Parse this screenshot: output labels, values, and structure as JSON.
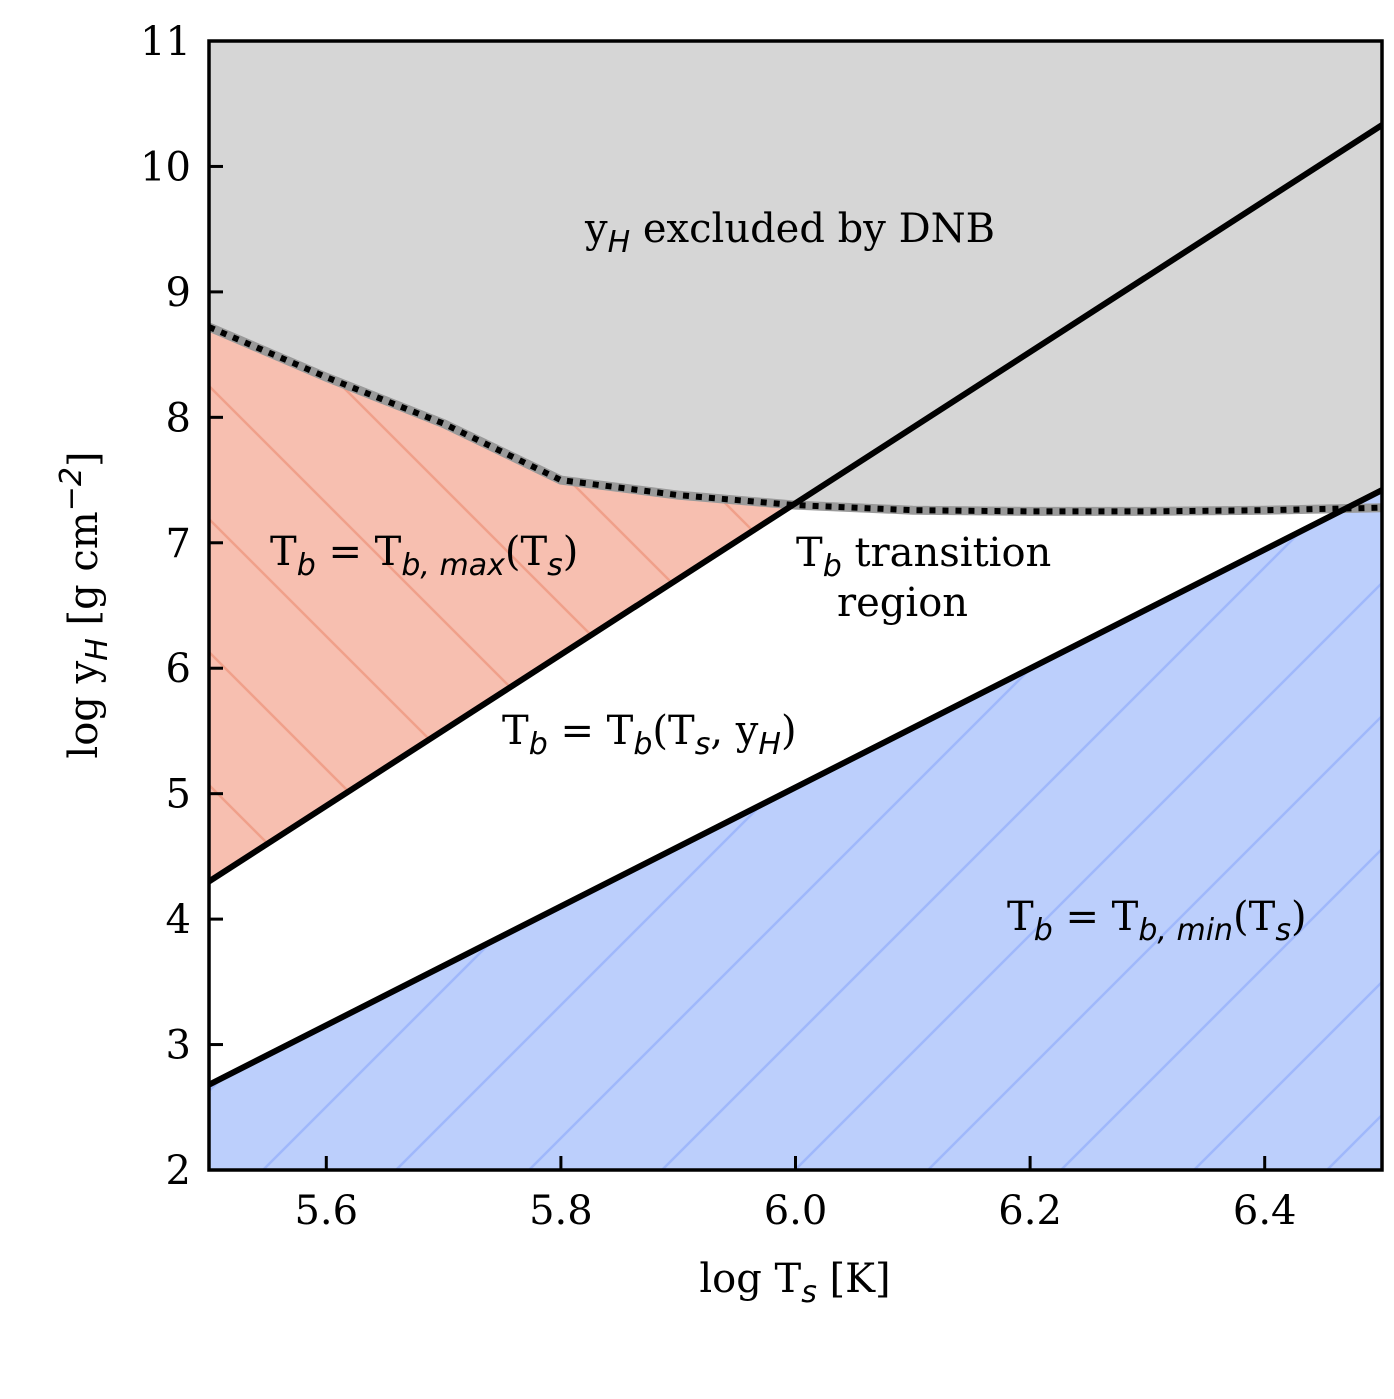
{
  "chart_data": {
    "type": "area",
    "xlabel": {
      "pre": "log T",
      "sub": "s",
      "post": " [K]"
    },
    "ylabel": {
      "pre": "log y",
      "sub": "H",
      "post": " [g cm",
      "sup": "−2",
      "end": "]"
    },
    "xlim": [
      5.5,
      6.5
    ],
    "ylim": [
      2,
      11
    ],
    "xticks": [
      5.6,
      5.8,
      6.0,
      6.2,
      6.4
    ],
    "xtick_labels": [
      "5.6",
      "5.8",
      "6.0",
      "6.2",
      "6.4"
    ],
    "yticks": [
      2,
      3,
      4,
      5,
      6,
      7,
      8,
      9,
      10,
      11
    ],
    "ytick_labels": [
      "2",
      "3",
      "4",
      "5",
      "6",
      "7",
      "8",
      "9",
      "10",
      "11"
    ],
    "grid": false,
    "colors": {
      "dnb_fill": "#d6d6d6",
      "tbmax_fill": "#f7bfb0",
      "tbmax_hatch": "#f0a08a",
      "tbmin_fill": "#bccffc",
      "tbmin_hatch": "#9fb8fb",
      "line": "#000000",
      "dnb_band": "#9a9a9a"
    },
    "series": [
      {
        "x": [
          5.5,
          6.5
        ],
        "y": [
          4.3,
          10.33
        ]
      },
      {
        "x": [
          5.5,
          6.5
        ],
        "y": [
          2.68,
          7.42
        ]
      },
      {
        "x": [
          5.5,
          5.6,
          5.7,
          5.8,
          5.9,
          6.0,
          6.1,
          6.2,
          6.3,
          6.4,
          6.5
        ],
        "y": [
          8.72,
          8.32,
          7.95,
          7.5,
          7.38,
          7.3,
          7.26,
          7.25,
          7.25,
          7.26,
          7.28
        ]
      }
    ],
    "annotations": {
      "dnb": {
        "pre": "y",
        "sub": "H",
        "post": " excluded by DNB"
      },
      "tbmax": {
        "pre": "T",
        "sub": "b",
        "mid": " = T",
        "sub2": "b, max",
        "post": "(T",
        "sub3": "s",
        "end": ")"
      },
      "transition_line1": {
        "pre": "T",
        "sub": "b",
        "post": " transition"
      },
      "transition_line2": "region",
      "tbfunc": {
        "pre": "T",
        "sub": "b",
        "mid": " = T",
        "sub2": "b",
        "post": "(T",
        "sub3": "s",
        "mid2": ", y",
        "sub4": "H",
        "end": ")"
      },
      "tbmin": {
        "pre": "T",
        "sub": "b",
        "mid": " = T",
        "sub2": "b, min",
        "post": "(T",
        "sub3": "s",
        "end": ")"
      }
    }
  }
}
